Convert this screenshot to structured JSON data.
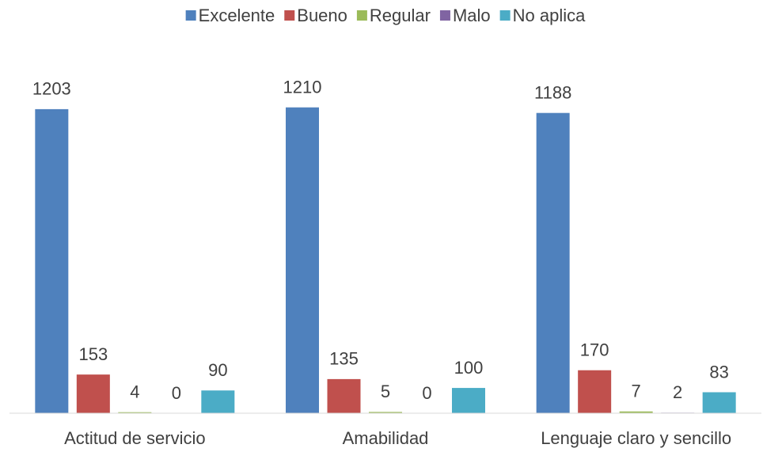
{
  "chart_data": {
    "type": "bar",
    "categories": [
      "Actitud de servicio",
      "Amabilidad",
      "Lenguaje claro y sencillo"
    ],
    "series": [
      {
        "name": "Excelente",
        "color": "#4f81bd",
        "values": [
          1203,
          1210,
          1188
        ]
      },
      {
        "name": "Bueno",
        "color": "#c0504d",
        "values": [
          153,
          135,
          170
        ]
      },
      {
        "name": "Regular",
        "color": "#9bbb59",
        "values": [
          4,
          5,
          7
        ]
      },
      {
        "name": "Malo",
        "color": "#8064a2",
        "values": [
          0,
          0,
          2
        ]
      },
      {
        "name": "No aplica",
        "color": "#4bacc6",
        "values": [
          90,
          100,
          83
        ]
      }
    ],
    "ylim": [
      0,
      1400
    ],
    "legend": "top"
  }
}
